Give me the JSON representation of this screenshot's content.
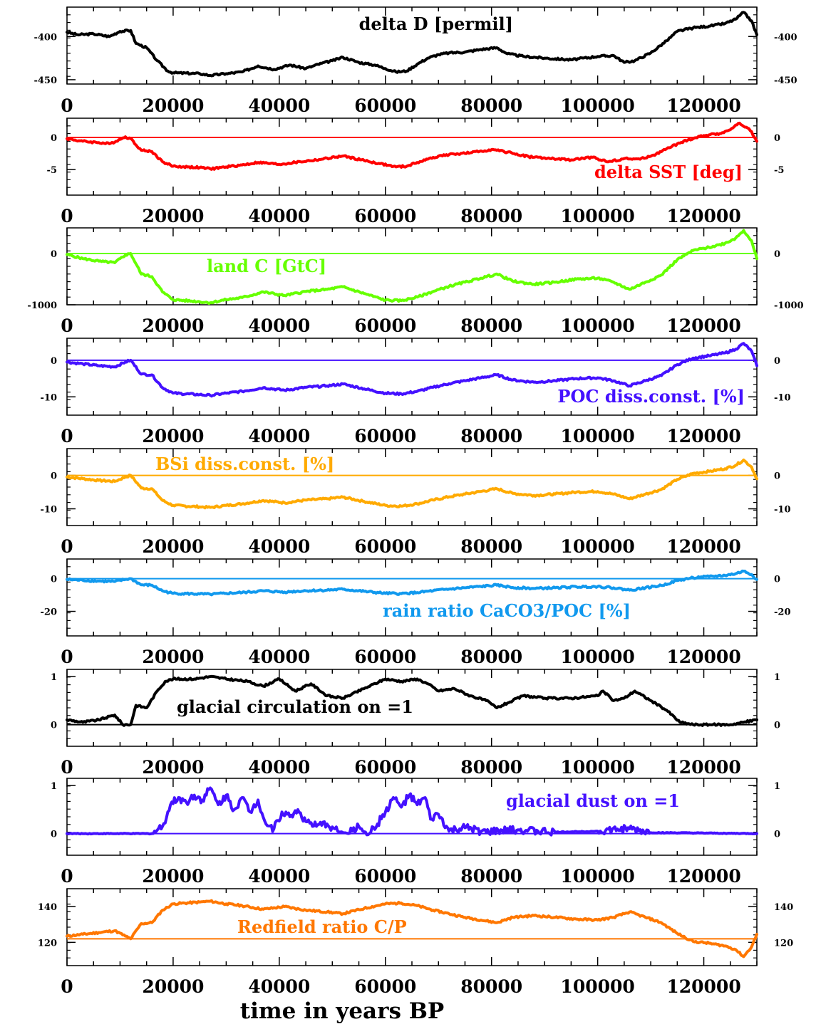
{
  "chart_data": {
    "type": "line",
    "xlabel": "time in years BP",
    "xlim": [
      0,
      130000
    ],
    "x_ticks": [
      0,
      20000,
      40000,
      60000,
      80000,
      100000,
      120000
    ],
    "x_tick_labels": [
      "0",
      "20000",
      "40000",
      "60000",
      "80000",
      "100000",
      "120000"
    ],
    "panels": [
      {
        "label": "delta D [permil]",
        "color": "#000000",
        "ylim": [
          -455,
          -366
        ],
        "y_ticks": [
          -400,
          -450
        ],
        "y_tick_labels": [
          "-400",
          "-450"
        ],
        "reference_line": null,
        "x": [
          0,
          2000,
          5000,
          8000,
          10000,
          12000,
          13000,
          15000,
          17000,
          19000,
          20000,
          25000,
          27000,
          30000,
          33000,
          36000,
          39000,
          42000,
          45000,
          48000,
          50000,
          52000,
          55000,
          58000,
          60000,
          62000,
          64000,
          66000,
          68000,
          70000,
          72000,
          75000,
          78000,
          81000,
          83000,
          86000,
          90000,
          95000,
          100000,
          103000,
          105000,
          107000,
          110000,
          113000,
          115000,
          118000,
          121000,
          124000,
          126000,
          127500,
          129000,
          130000
        ],
        "y": [
          -395,
          -398,
          -397,
          -400,
          -394,
          -393,
          -408,
          -413,
          -428,
          -440,
          -442,
          -443,
          -445,
          -443,
          -441,
          -434,
          -438,
          -433,
          -437,
          -431,
          -428,
          -424,
          -430,
          -433,
          -437,
          -441,
          -440,
          -432,
          -425,
          -421,
          -419,
          -418,
          -415,
          -413,
          -420,
          -423,
          -425,
          -427,
          -423,
          -422,
          -430,
          -428,
          -419,
          -405,
          -394,
          -390,
          -388,
          -385,
          -380,
          -372,
          -382,
          -398
        ]
      },
      {
        "label": "delta SST [deg]",
        "color": "#ff0000",
        "ylim": [
          -9,
          3
        ],
        "y_ticks": [
          0,
          -5
        ],
        "y_tick_labels": [
          "0",
          "-5"
        ],
        "reference_line": 0,
        "x": [
          0,
          3000,
          6000,
          8000,
          10000,
          11000,
          12000,
          14000,
          16000,
          18000,
          20000,
          25000,
          27000,
          30000,
          33000,
          36000,
          40000,
          44000,
          48000,
          52000,
          56000,
          59000,
          62000,
          64000,
          66000,
          68000,
          70000,
          73000,
          76000,
          80000,
          83000,
          87000,
          91000,
          95000,
          99000,
          102000,
          105000,
          108000,
          111000,
          114000,
          117000,
          120000,
          123000,
          125000,
          126500,
          128000,
          129000,
          130000
        ],
        "y": [
          -0.2,
          -0.6,
          -0.8,
          -1.0,
          -0.3,
          0.1,
          -0.2,
          -2.0,
          -2.2,
          -3.8,
          -4.5,
          -4.7,
          -4.9,
          -4.6,
          -4.3,
          -3.9,
          -4.2,
          -3.8,
          -3.4,
          -2.9,
          -3.6,
          -4.1,
          -4.6,
          -4.5,
          -3.9,
          -3.4,
          -2.9,
          -2.6,
          -2.4,
          -1.9,
          -2.3,
          -3.0,
          -3.3,
          -3.5,
          -3.1,
          -3.8,
          -3.3,
          -3.4,
          -2.6,
          -1.4,
          -0.4,
          0.3,
          0.6,
          1.2,
          2.2,
          1.6,
          0.9,
          -0.6
        ]
      },
      {
        "label": "land C [GtC]",
        "color": "#66ff00",
        "ylim": [
          -1000,
          500
        ],
        "y_ticks": [
          0,
          -1000
        ],
        "y_tick_labels": [
          "0",
          "-1000"
        ],
        "reference_line": 0,
        "x": [
          0,
          3000,
          6000,
          9000,
          11000,
          12000,
          14000,
          16000,
          18000,
          20000,
          25000,
          27000,
          30000,
          33000,
          37000,
          41000,
          45000,
          49000,
          52000,
          56000,
          60000,
          63000,
          66000,
          69000,
          72000,
          75000,
          78000,
          81000,
          84000,
          88000,
          92000,
          96000,
          100000,
          103000,
          106000,
          109000,
          112000,
          115000,
          118000,
          121000,
          124000,
          126000,
          127500,
          129000,
          130000
        ],
        "y": [
          -20,
          -100,
          -150,
          -180,
          -30,
          0,
          -400,
          -450,
          -750,
          -900,
          -940,
          -960,
          -900,
          -860,
          -750,
          -820,
          -740,
          -700,
          -650,
          -780,
          -910,
          -920,
          -850,
          -740,
          -640,
          -560,
          -480,
          -400,
          -540,
          -600,
          -560,
          -500,
          -480,
          -560,
          -700,
          -560,
          -420,
          -120,
          60,
          120,
          200,
          300,
          450,
          250,
          -100
        ]
      },
      {
        "label": "POC diss.const. [%]",
        "color": "#4411ff",
        "ylim": [
          -15,
          6
        ],
        "y_ticks": [
          0,
          -10
        ],
        "y_tick_labels": [
          "0",
          "-10"
        ],
        "reference_line": 0,
        "x": [
          0,
          3000,
          6000,
          9000,
          11000,
          12000,
          14000,
          16000,
          18000,
          20000,
          25000,
          27000,
          30000,
          33000,
          37000,
          41000,
          45000,
          49000,
          52000,
          56000,
          60000,
          63000,
          66000,
          69000,
          72000,
          75000,
          78000,
          81000,
          84000,
          88000,
          92000,
          96000,
          100000,
          103000,
          106000,
          109000,
          112000,
          115000,
          118000,
          121000,
          124000,
          126000,
          127500,
          129000,
          130000
        ],
        "y": [
          -0.5,
          -1.0,
          -1.5,
          -1.8,
          -0.5,
          0,
          -3.8,
          -4.0,
          -7.5,
          -9.0,
          -9.4,
          -9.6,
          -9.0,
          -8.5,
          -7.5,
          -8.2,
          -7.4,
          -7.0,
          -6.5,
          -7.8,
          -9.0,
          -9.2,
          -8.5,
          -7.4,
          -6.4,
          -5.6,
          -4.8,
          -4.0,
          -5.4,
          -6.0,
          -5.6,
          -5.0,
          -4.8,
          -5.6,
          -7.0,
          -5.6,
          -4.2,
          -1.2,
          0.6,
          1.2,
          2.0,
          3.0,
          4.6,
          2.5,
          -1.5
        ]
      },
      {
        "label": "BSi diss.const. [%]",
        "color": "#ffaa00",
        "ylim": [
          -15,
          8
        ],
        "y_ticks": [
          0,
          -10
        ],
        "y_tick_labels": [
          "0",
          "-10"
        ],
        "reference_line": 0,
        "x": [
          0,
          3000,
          6000,
          9000,
          11000,
          12000,
          14000,
          16000,
          18000,
          20000,
          25000,
          27000,
          30000,
          33000,
          37000,
          41000,
          45000,
          49000,
          52000,
          56000,
          60000,
          63000,
          66000,
          69000,
          72000,
          75000,
          78000,
          81000,
          84000,
          88000,
          92000,
          96000,
          100000,
          103000,
          106000,
          109000,
          112000,
          115000,
          118000,
          121000,
          124000,
          126000,
          127500,
          129000,
          130000
        ],
        "y": [
          -0.5,
          -1.0,
          -1.5,
          -1.8,
          -0.5,
          0,
          -3.8,
          -4.0,
          -7.5,
          -9.0,
          -9.4,
          -9.6,
          -9.0,
          -8.5,
          -7.5,
          -8.2,
          -7.4,
          -7.0,
          -6.5,
          -7.8,
          -9.0,
          -9.2,
          -8.5,
          -7.4,
          -6.4,
          -5.6,
          -4.8,
          -4.0,
          -5.4,
          -6.0,
          -5.6,
          -5.0,
          -4.8,
          -5.6,
          -7.0,
          -5.6,
          -4.2,
          -1.2,
          0.6,
          1.2,
          2.0,
          3.0,
          4.6,
          2.5,
          -1.0
        ]
      },
      {
        "label": "rain ratio CaCO3/POC [%]",
        "color": "#1199ee",
        "ylim": [
          -35,
          12
        ],
        "y_ticks": [
          0,
          -20
        ],
        "y_tick_labels": [
          "0",
          "-20"
        ],
        "reference_line": 0,
        "x": [
          0,
          3000,
          6000,
          9000,
          11000,
          12000,
          14000,
          16000,
          18000,
          20000,
          25000,
          27000,
          30000,
          33000,
          37000,
          41000,
          45000,
          49000,
          52000,
          56000,
          60000,
          63000,
          66000,
          69000,
          72000,
          75000,
          78000,
          81000,
          84000,
          88000,
          92000,
          96000,
          100000,
          103000,
          106000,
          109000,
          112000,
          115000,
          118000,
          121000,
          124000,
          126000,
          127500,
          129000,
          130000
        ],
        "y": [
          -0.5,
          -1.0,
          -1.5,
          -1.8,
          -0.5,
          0,
          -3.8,
          -4.0,
          -7.5,
          -9.0,
          -9.4,
          -9.6,
          -9.0,
          -8.5,
          -7.5,
          -8.2,
          -7.4,
          -7.0,
          -6.5,
          -7.8,
          -9.0,
          -9.2,
          -8.5,
          -7.4,
          -6.4,
          -5.6,
          -4.8,
          -4.0,
          -5.4,
          -6.0,
          -5.6,
          -5.0,
          -4.8,
          -5.6,
          -7.0,
          -5.6,
          -4.2,
          -1.2,
          0.6,
          1.2,
          2.0,
          3.0,
          4.6,
          2.5,
          -0.5
        ]
      },
      {
        "label": "glacial circulation on =1",
        "color": "#000000",
        "ylim": [
          -0.45,
          1.15
        ],
        "y_ticks": [
          1,
          0
        ],
        "y_tick_labels": [
          "1",
          "0"
        ],
        "reference_line": 0,
        "x": [
          0,
          3000,
          6000,
          9000,
          10500,
          12000,
          13000,
          15000,
          17000,
          18500,
          20000,
          24000,
          27000,
          30000,
          34000,
          37000,
          40000,
          43000,
          46000,
          49000,
          52000,
          56000,
          60000,
          63000,
          66000,
          68000,
          70000,
          73000,
          76000,
          79000,
          81000,
          83000,
          86000,
          90000,
          95000,
          100000,
          101000,
          103000,
          105000,
          107000,
          110000,
          113000,
          115500,
          118000,
          125000,
          130000
        ],
        "y": [
          0.1,
          0.05,
          0.1,
          0.2,
          0.0,
          0.0,
          0.4,
          0.35,
          0.7,
          0.9,
          0.95,
          0.95,
          1.0,
          0.95,
          0.9,
          0.8,
          0.95,
          0.7,
          0.85,
          0.6,
          0.55,
          0.75,
          0.95,
          0.9,
          0.95,
          0.85,
          0.7,
          0.75,
          0.6,
          0.5,
          0.35,
          0.45,
          0.6,
          0.55,
          0.55,
          0.6,
          0.7,
          0.5,
          0.55,
          0.7,
          0.5,
          0.3,
          0.05,
          0.0,
          0.0,
          0.1
        ]
      },
      {
        "label": "glacial dust on =1",
        "color": "#4411ff",
        "ylim": [
          -0.45,
          1.15
        ],
        "y_ticks": [
          1,
          0
        ],
        "y_tick_labels": [
          "1",
          "0"
        ],
        "reference_line": 0,
        "x": [
          0,
          16000,
          18000,
          19500,
          21000,
          22500,
          24000,
          25500,
          27000,
          28500,
          30000,
          31500,
          33000,
          34500,
          36000,
          37500,
          39000,
          40500,
          42000,
          43500,
          45000,
          47000,
          49000,
          51000,
          53000,
          55000,
          57000,
          58500,
          60000,
          61500,
          63000,
          64500,
          66000,
          67500,
          68500,
          70000,
          72000,
          75000,
          79000,
          85000,
          92000,
          100000,
          106000,
          110000,
          130000
        ],
        "y": [
          0,
          0,
          0.15,
          0.6,
          0.75,
          0.65,
          0.8,
          0.7,
          0.95,
          0.6,
          0.8,
          0.5,
          0.75,
          0.45,
          0.7,
          0.2,
          0.1,
          0.45,
          0.35,
          0.5,
          0.25,
          0.15,
          0.2,
          0.05,
          0.0,
          0.15,
          0.0,
          0.2,
          0.45,
          0.75,
          0.55,
          0.8,
          0.6,
          0.75,
          0.3,
          0.4,
          0.05,
          0.12,
          0.03,
          0.08,
          0.03,
          0.05,
          0.1,
          0.02,
          0.0
        ]
      },
      {
        "label": "Redfield ratio C/P",
        "color": "#ff7700",
        "ylim": [
          107,
          150
        ],
        "y_ticks": [
          140,
          120
        ],
        "y_tick_labels": [
          "140",
          "120"
        ],
        "reference_line": 122,
        "x": [
          0,
          3000,
          6000,
          9000,
          11000,
          12000,
          14000,
          16000,
          18000,
          20000,
          25000,
          27000,
          30000,
          33000,
          37000,
          41000,
          45000,
          49000,
          52000,
          56000,
          60000,
          63000,
          66000,
          69000,
          72000,
          75000,
          78000,
          81000,
          84000,
          88000,
          92000,
          96000,
          100000,
          103000,
          106000,
          109000,
          112000,
          115000,
          118000,
          121000,
          124000,
          126000,
          127500,
          129000,
          130000
        ],
        "y": [
          123.5,
          124.5,
          125.5,
          126.5,
          123.5,
          122,
          130.5,
          131,
          138,
          141.5,
          142.5,
          143,
          141.5,
          140.5,
          138.5,
          140,
          138,
          137,
          136,
          139,
          141.5,
          142,
          140.5,
          138,
          136,
          134,
          132.5,
          131,
          134,
          135,
          134,
          133,
          132.5,
          134,
          137,
          134,
          131,
          125,
          120.5,
          119.5,
          118,
          116,
          112,
          117.5,
          124.5
        ]
      }
    ]
  }
}
